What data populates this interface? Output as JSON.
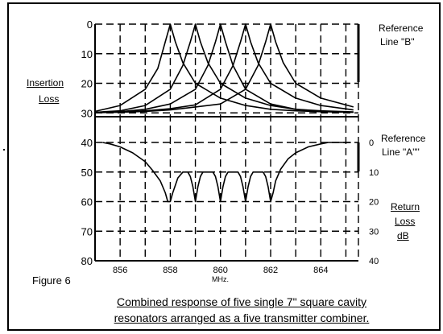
{
  "figure_label": "Figure 6",
  "caption_lines": [
    "Combined response of five single 7\" square cavity",
    "resonators arranged as a five transmitter combiner."
  ],
  "labels": {
    "insertion_line1": "Insertion",
    "insertion_line2": "Loss",
    "return_line1": "Return",
    "return_line2": "Loss",
    "return_line3": "dB",
    "ref_b_line1": "Reference",
    "ref_b_line2": "Line \"B\"",
    "ref_a_line1": "Reference",
    "ref_a_line2": "Line \"A\"\"",
    "x_unit": "MHz."
  },
  "colors": {
    "line": "#000000",
    "background": "#ffffff"
  },
  "chart_data": {
    "type": "line",
    "xlabel": "MHz.",
    "xlim": [
      855,
      865.5
    ],
    "x_ticks": [
      "856",
      "858",
      "860",
      "862",
      "864"
    ],
    "left_y_ticks": [
      "0",
      "10",
      "20",
      "30",
      "40",
      "50",
      "60",
      "70",
      "80"
    ],
    "left_ylim": [
      0,
      80
    ],
    "right_y_ticks": [
      "0",
      "10",
      "20",
      "30",
      "40"
    ],
    "right_ylim": [
      0,
      40
    ],
    "grid": true,
    "insertion_loss_centers_mhz": [
      858,
      859,
      860,
      861,
      862
    ],
    "insertion_loss_series": [
      {
        "center": 858,
        "x": [
          855,
          856,
          857,
          857.5,
          857.8,
          858,
          858.2,
          858.5,
          859,
          860,
          861,
          862,
          863,
          864,
          865.3
        ],
        "y": [
          29.5,
          27.5,
          22,
          15,
          6,
          0,
          6,
          13,
          20,
          25,
          27.5,
          28.8,
          29.3,
          29.6,
          29.8
        ]
      },
      {
        "center": 859,
        "x": [
          855,
          856,
          857,
          858,
          858.5,
          858.8,
          859,
          859.2,
          859.5,
          860,
          861,
          862,
          863,
          864,
          865.3
        ],
        "y": [
          29.8,
          29.3,
          27.5,
          22,
          14,
          6,
          0,
          6,
          13,
          20,
          25,
          27.5,
          28.8,
          29.3,
          29.7
        ]
      },
      {
        "center": 860,
        "x": [
          855,
          856,
          857,
          858,
          859,
          859.5,
          859.8,
          860,
          860.2,
          860.5,
          861,
          862,
          863,
          864,
          865.3
        ],
        "y": [
          29.9,
          29.6,
          28.8,
          27,
          22,
          14,
          6,
          0,
          6,
          14,
          22,
          27,
          28.8,
          29.5,
          29.8
        ]
      },
      {
        "center": 861,
        "x": [
          855,
          856,
          857,
          858,
          859,
          860,
          860.5,
          860.8,
          861,
          861.2,
          861.5,
          862,
          863,
          864,
          865.3
        ],
        "y": [
          29.9,
          29.7,
          29.3,
          28.6,
          27.3,
          22,
          14,
          6,
          0,
          6,
          13,
          20,
          25,
          27.5,
          29
        ]
      },
      {
        "center": 862,
        "x": [
          855,
          856,
          857,
          858,
          859,
          860,
          861,
          861.5,
          861.8,
          862,
          862.2,
          862.5,
          863,
          864,
          865.3
        ],
        "y": [
          29.9,
          29.8,
          29.5,
          29,
          28,
          27,
          22,
          14,
          6,
          0,
          6,
          13,
          20,
          25,
          28
        ]
      }
    ],
    "return_loss_series": {
      "name": "Return Loss",
      "axis": "right",
      "x": [
        855.3,
        855.6,
        856,
        856.5,
        857,
        857.3,
        857.6,
        857.8,
        857.9,
        858,
        858.1,
        858.3,
        858.5,
        858.7,
        858.8,
        858.9,
        859,
        859.1,
        859.2,
        859.3,
        859.5,
        859.7,
        859.8,
        859.9,
        860,
        860.1,
        860.2,
        860.3,
        860.5,
        860.7,
        860.8,
        860.9,
        861,
        861.1,
        861.2,
        861.3,
        861.5,
        861.7,
        861.8,
        861.9,
        862,
        862.1,
        862.2,
        862.4,
        862.7,
        863,
        863.5,
        864,
        864.3,
        865.2
      ],
      "y": [
        0,
        0.5,
        1.5,
        3.5,
        6.5,
        9.5,
        13,
        17,
        20,
        20,
        17,
        12,
        10,
        10,
        11.5,
        15,
        20,
        15,
        11.5,
        10,
        10,
        10,
        11.5,
        15,
        20,
        15,
        11.5,
        10,
        10,
        10,
        11.5,
        15,
        20,
        15,
        11.5,
        10,
        10,
        10,
        11.5,
        15,
        20,
        17,
        13,
        9,
        5.5,
        3.5,
        1.5,
        0.5,
        0,
        0
      ]
    }
  }
}
